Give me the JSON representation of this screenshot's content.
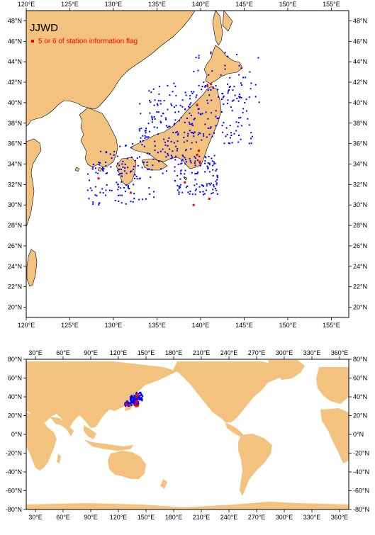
{
  "colors": {
    "land": "#f2c27e",
    "ocean": "#ffffff",
    "station_normal": "#0000ff",
    "station_flagged": "#ff0000"
  },
  "top_map": {
    "title": "JJWD",
    "legend_label": "5 or 6 of station information flag",
    "x_ticks": [
      "120°E",
      "125°E",
      "130°E",
      "135°E",
      "140°E",
      "145°E",
      "150°E",
      "155°E"
    ],
    "y_ticks": [
      "48°N",
      "46°N",
      "44°N",
      "42°N",
      "40°N",
      "38°N",
      "36°N",
      "34°N",
      "32°N",
      "30°N",
      "28°N",
      "26°N",
      "24°N",
      "22°N",
      "20°N"
    ],
    "lon_range": [
      120,
      157
    ],
    "lat_range": [
      19,
      49
    ]
  },
  "bottom_map": {
    "x_ticks": [
      "30°E",
      "60°E",
      "90°E",
      "120°E",
      "150°E",
      "180°E",
      "210°E",
      "240°E",
      "270°E",
      "300°E",
      "330°E",
      "360°E"
    ],
    "y_ticks": [
      "80°N",
      "60°N",
      "40°N",
      "20°N",
      "0°N",
      "-20°N",
      "-40°N",
      "-60°N",
      "-80°N"
    ],
    "lon_range": [
      20,
      370
    ],
    "lat_range": [
      -80,
      80
    ]
  }
}
